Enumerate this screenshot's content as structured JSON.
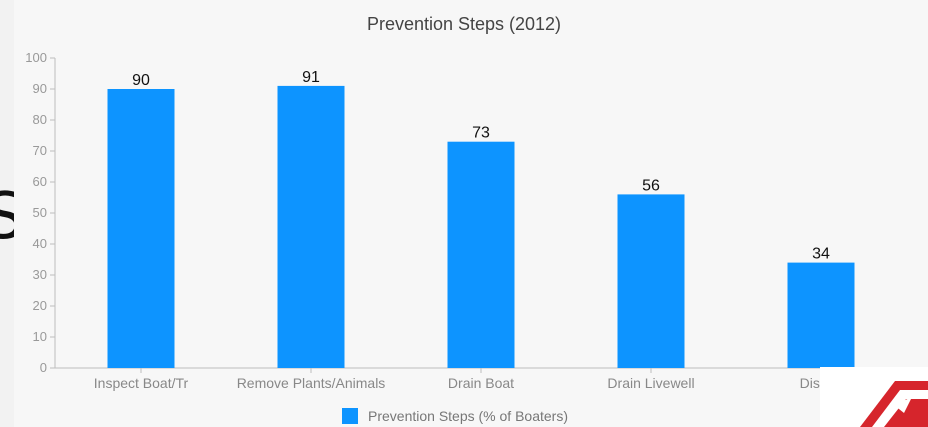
{
  "colors": {
    "bar": "#0d94ff",
    "background": "#f7f7f7",
    "axis": "#bdbdbd",
    "title": "#444444",
    "sign_red": "#d6252c"
  },
  "chart_data": {
    "type": "bar",
    "title": "Prevention Steps (2012)",
    "xlabel": "",
    "ylabel": "",
    "ylim": [
      0,
      100
    ],
    "yticks": [
      0,
      10,
      20,
      30,
      40,
      50,
      60,
      70,
      80,
      90,
      100
    ],
    "grid": false,
    "legend_position": "bottom",
    "categories": [
      "Inspect Boat/Tr",
      "Remove Plants/Animals",
      "Drain Boat",
      "Drain Livewell",
      "Dispos"
    ],
    "series": [
      {
        "name": "Prevention Steps (% of Boaters)",
        "values": [
          90,
          91,
          73,
          56,
          34
        ]
      }
    ]
  }
}
